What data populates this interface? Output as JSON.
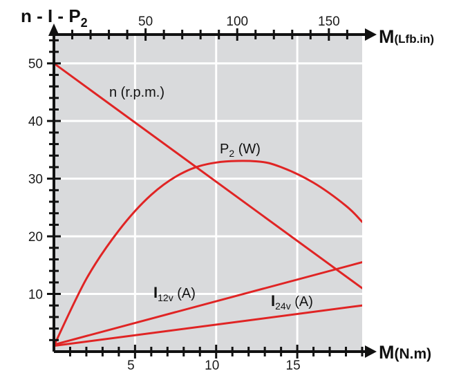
{
  "chart_data": {
    "type": "line",
    "title": "n - I - P",
    "title_sub": "2",
    "x_axis": {
      "label": "M",
      "unit": "(N.m)",
      "range": [
        0,
        19
      ],
      "ticks": [
        "5",
        "10",
        "15"
      ],
      "tick_values": [
        5,
        10,
        15
      ]
    },
    "x2_axis": {
      "label": "M",
      "unit": "(Lfb.in)",
      "ticks": [
        "50",
        "100",
        "150"
      ],
      "tick_values_in_Nm": [
        5.65,
        11.3,
        16.95
      ]
    },
    "y_axis": {
      "label": "n - I - P2",
      "range": [
        0,
        55
      ],
      "ticks": [
        "10",
        "20",
        "30",
        "40",
        "50"
      ],
      "tick_values": [
        10,
        20,
        30,
        40,
        50
      ]
    },
    "grid": true,
    "background_color": "#d9dadc",
    "series_color": "#e02424",
    "series": [
      {
        "name": "n (r.p.m.)",
        "x": [
          0,
          19
        ],
        "values": [
          50,
          11
        ]
      },
      {
        "name": "P2 (W)",
        "x": [
          0,
          2,
          4,
          6,
          8,
          10,
          12.5,
          14,
          16,
          18,
          19
        ],
        "values": [
          1,
          12.6,
          21,
          27.2,
          31.1,
          32.8,
          33,
          32,
          29.3,
          25.3,
          22.5
        ]
      },
      {
        "name": "I12v (A)",
        "x": [
          0,
          19
        ],
        "values": [
          1.2,
          15.5
        ]
      },
      {
        "name": "I24v (A)",
        "x": [
          0,
          19
        ],
        "values": [
          1,
          8
        ]
      }
    ],
    "series_labels": [
      {
        "main": "n (r.p.m.)",
        "sub": ""
      },
      {
        "main": "P",
        "sub": "2",
        "rest": " (W)"
      },
      {
        "main": "I",
        "sub": "12v",
        "rest": " (A)"
      },
      {
        "main": "I",
        "sub": "24v",
        "rest": " (A)"
      }
    ]
  }
}
